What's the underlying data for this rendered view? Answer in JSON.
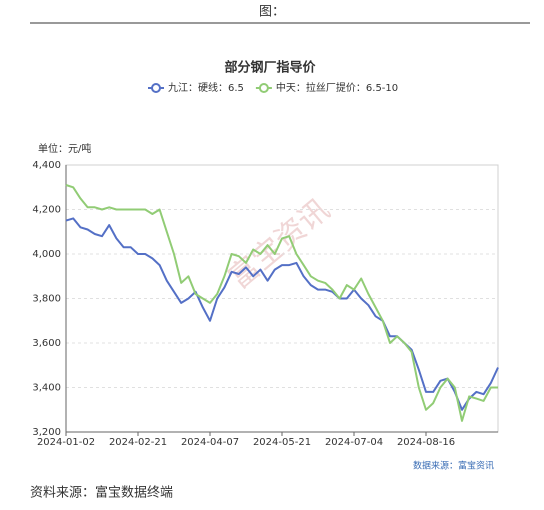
{
  "header": "图：",
  "source": "资料来源：富宝数据终端",
  "chart_data": {
    "type": "line",
    "title": "部分钢厂指导价",
    "unit_label": "单位：元/吨",
    "watermark": "富宝资讯",
    "credit": "数据来源：富宝资讯",
    "categories": [
      "2024-01-02",
      null,
      null,
      null,
      null,
      null,
      null,
      null,
      null,
      null,
      "2024-02-21",
      null,
      null,
      null,
      null,
      null,
      null,
      null,
      null,
      null,
      "2024-04-07",
      null,
      null,
      null,
      null,
      null,
      null,
      null,
      null,
      null,
      "2024-05-21",
      null,
      null,
      null,
      null,
      null,
      null,
      null,
      null,
      null,
      "2024-07-04",
      null,
      null,
      null,
      null,
      null,
      null,
      null,
      null,
      null,
      "2024-08-16",
      null,
      null,
      null,
      null,
      null,
      null,
      null,
      null,
      null,
      null
    ],
    "series": [
      {
        "name": "九江：硬线：6.5",
        "color": "#5470c6",
        "values": [
          4150,
          4160,
          4120,
          4110,
          4090,
          4080,
          4130,
          4070,
          4030,
          4030,
          4000,
          4000,
          3980,
          3950,
          3880,
          3830,
          3780,
          3800,
          3830,
          3760,
          3700,
          3800,
          3850,
          3920,
          3910,
          3940,
          3900,
          3930,
          3880,
          3930,
          3950,
          3950,
          3960,
          3900,
          3860,
          3840,
          3840,
          3830,
          3800,
          3800,
          3840,
          3800,
          3770,
          3720,
          3700,
          3630,
          3630,
          3600,
          3570,
          3480,
          3380,
          3380,
          3430,
          3440,
          3380,
          3300,
          3350,
          3380,
          3370,
          3420,
          3490
        ]
      },
      {
        "name": "中天：拉丝厂提价：6.5-10",
        "color": "#91cc75",
        "values": [
          4310,
          4300,
          4250,
          4210,
          4210,
          4200,
          4210,
          4200,
          4200,
          4200,
          4200,
          4200,
          4180,
          4200,
          4100,
          4000,
          3870,
          3900,
          3820,
          3800,
          3780,
          3820,
          3900,
          4000,
          3990,
          3960,
          4020,
          4000,
          4040,
          4000,
          4070,
          4080,
          4000,
          3950,
          3900,
          3880,
          3870,
          3840,
          3800,
          3860,
          3840,
          3890,
          3820,
          3760,
          3700,
          3600,
          3630,
          3600,
          3560,
          3400,
          3300,
          3330,
          3400,
          3440,
          3400,
          3250,
          3360,
          3350,
          3340,
          3400,
          3400
        ]
      }
    ],
    "ylim": [
      3200,
      4400
    ],
    "yticks": [
      {
        "value": 3200,
        "label": "3,200"
      },
      {
        "value": 3400,
        "label": "3,400"
      },
      {
        "value": 3600,
        "label": "3,600"
      },
      {
        "value": 3800,
        "label": "3,800"
      },
      {
        "value": 4000,
        "label": "4,000"
      },
      {
        "value": 4200,
        "label": "4,200"
      },
      {
        "value": 4400,
        "label": "4,400"
      }
    ],
    "grid": true
  }
}
